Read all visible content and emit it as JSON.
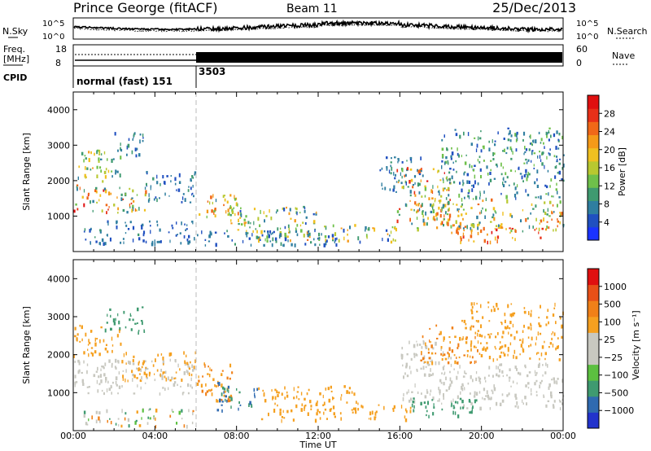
{
  "header": {
    "station": "Prince George (fitACF)",
    "beam": "Beam 11",
    "date": "25/Dec/2013"
  },
  "noise_panel": {
    "left_label": "N.Sky",
    "right_label": "N.Search",
    "tick_top": "10^5",
    "tick_bottom": "10^0"
  },
  "freq_panel": {
    "left_label_line1": "Freq.",
    "left_label_line2": "[MHz]",
    "left_ticks": [
      "18",
      "8"
    ],
    "right_label": "Nave",
    "right_ticks": [
      "60",
      "0"
    ]
  },
  "cpid_panel": {
    "label": "CPID",
    "segments": [
      {
        "start_hour": 0,
        "text": "normal (fast) 151"
      },
      {
        "start_hour": 6,
        "text": "3503"
      }
    ]
  },
  "chart_data": [
    {
      "type": "heatmap",
      "name": "power",
      "ylabel": "Slant Range [km]",
      "xlim": [
        0,
        24
      ],
      "ylim": [
        0,
        4500
      ],
      "yticks": [
        1000,
        2000,
        3000,
        4000
      ],
      "colorbar": {
        "label": "Power [dB]",
        "ticks": [
          "4",
          "8",
          "12",
          "16",
          "20",
          "24",
          "28"
        ],
        "range": [
          0,
          32
        ],
        "colors": [
          "#1a33ff",
          "#2050c0",
          "#2f7ea0",
          "#3f9a70",
          "#6fc04a",
          "#b8c830",
          "#f0c020",
          "#f59a18",
          "#f06818",
          "#e83018",
          "#e01010"
        ]
      },
      "regions": [
        {
          "x0": 0.0,
          "x1": 2.3,
          "y0": 2000,
          "y1": 2900,
          "v0": 6,
          "v1": 22
        },
        {
          "x0": 0.0,
          "x1": 3.6,
          "y0": 1100,
          "y1": 1900,
          "v0": 6,
          "v1": 30
        },
        {
          "x0": 2.0,
          "x1": 3.4,
          "y0": 2700,
          "y1": 3400,
          "v0": 4,
          "v1": 10
        },
        {
          "x0": 3.5,
          "x1": 6.0,
          "y0": 1400,
          "y1": 2300,
          "v0": 4,
          "v1": 10
        },
        {
          "x0": 0.5,
          "x1": 6.0,
          "y0": 250,
          "y1": 900,
          "v0": 3,
          "v1": 9
        },
        {
          "x0": 6.0,
          "x1": 8.0,
          "y0": 1000,
          "y1": 1700,
          "v0": 8,
          "v1": 26
        },
        {
          "x0": 7.5,
          "x1": 9.0,
          "y0": 600,
          "y1": 1400,
          "v0": 8,
          "v1": 22
        },
        {
          "x0": 8.0,
          "x1": 12.0,
          "y0": 300,
          "y1": 1300,
          "v0": 4,
          "v1": 24
        },
        {
          "x0": 12.0,
          "x1": 15.8,
          "y0": 300,
          "y1": 800,
          "v0": 4,
          "v1": 22
        },
        {
          "x0": 6.0,
          "x1": 13.0,
          "y0": 200,
          "y1": 600,
          "v0": 3,
          "v1": 9
        },
        {
          "x0": 15.8,
          "x1": 18.5,
          "y0": 700,
          "y1": 2400,
          "v0": 6,
          "v1": 30
        },
        {
          "x0": 16.5,
          "x1": 24.0,
          "y0": 600,
          "y1": 1500,
          "v0": 6,
          "v1": 26
        },
        {
          "x0": 18.5,
          "x1": 23.0,
          "y0": 300,
          "y1": 700,
          "v0": 18,
          "v1": 31
        },
        {
          "x0": 18.0,
          "x1": 24.0,
          "y0": 1500,
          "y1": 3500,
          "v0": 4,
          "v1": 14
        },
        {
          "x0": 15.0,
          "x1": 17.0,
          "y0": 1700,
          "y1": 2700,
          "v0": 4,
          "v1": 10
        }
      ]
    },
    {
      "type": "heatmap",
      "name": "velocity",
      "ylabel": "Slant Range [km]",
      "xlabel": "Time UT",
      "xlim": [
        0,
        24
      ],
      "ylim": [
        0,
        4500
      ],
      "yticks": [
        1000,
        2000,
        3000,
        4000
      ],
      "xticks": [
        "00:00",
        "04:00",
        "08:00",
        "12:00",
        "16:00",
        "20:00",
        "00:00"
      ],
      "colorbar": {
        "label": "Velocity [m s⁻¹]",
        "ticks": [
          "1000",
          "500",
          "100",
          "25",
          "−25",
          "−100",
          "−500",
          "−1000"
        ],
        "colors": [
          "#2233cc",
          "#2f6ab0",
          "#3f9a70",
          "#5cc040",
          "#c8c8c0",
          "#c8c8c0",
          "#f5a020",
          "#f08018",
          "#e85018",
          "#e01010"
        ]
      },
      "regions": [
        {
          "x0": 0.0,
          "x1": 6.0,
          "y0": 1000,
          "y1": 1900,
          "v0": 4,
          "v1": 5
        },
        {
          "x0": 0.0,
          "x1": 2.3,
          "y0": 2000,
          "y1": 2800,
          "v0": 6,
          "v1": 7
        },
        {
          "x0": 2.3,
          "x1": 6.0,
          "y0": 1300,
          "y1": 2100,
          "v0": 6,
          "v1": 7
        },
        {
          "x0": 1.5,
          "x1": 3.5,
          "y0": 2600,
          "y1": 3300,
          "v0": 2,
          "v1": 3
        },
        {
          "x0": 6.0,
          "x1": 8.0,
          "y0": 800,
          "y1": 1800,
          "v0": 6,
          "v1": 8
        },
        {
          "x0": 7.0,
          "x1": 9.0,
          "y0": 500,
          "y1": 1300,
          "v0": 1,
          "v1": 3
        },
        {
          "x0": 9.0,
          "x1": 14.0,
          "y0": 300,
          "y1": 1200,
          "v0": 6,
          "v1": 7
        },
        {
          "x0": 14.0,
          "x1": 16.5,
          "y0": 300,
          "y1": 700,
          "v0": 6,
          "v1": 7
        },
        {
          "x0": 16.0,
          "x1": 18.5,
          "y0": 800,
          "y1": 2400,
          "v0": 4,
          "v1": 5
        },
        {
          "x0": 17.0,
          "x1": 20.0,
          "y0": 1800,
          "y1": 2800,
          "v0": 6,
          "v1": 8
        },
        {
          "x0": 18.0,
          "x1": 24.0,
          "y0": 600,
          "y1": 1800,
          "v0": 4,
          "v1": 5
        },
        {
          "x0": 19.0,
          "x1": 24.0,
          "y0": 1900,
          "y1": 3400,
          "v0": 6,
          "v1": 7
        },
        {
          "x0": 0.5,
          "x1": 6.0,
          "y0": 150,
          "y1": 600,
          "v0": 2,
          "v1": 8
        },
        {
          "x0": 16.5,
          "x1": 20.0,
          "y0": 400,
          "y1": 900,
          "v0": 2,
          "v1": 3
        }
      ]
    }
  ]
}
